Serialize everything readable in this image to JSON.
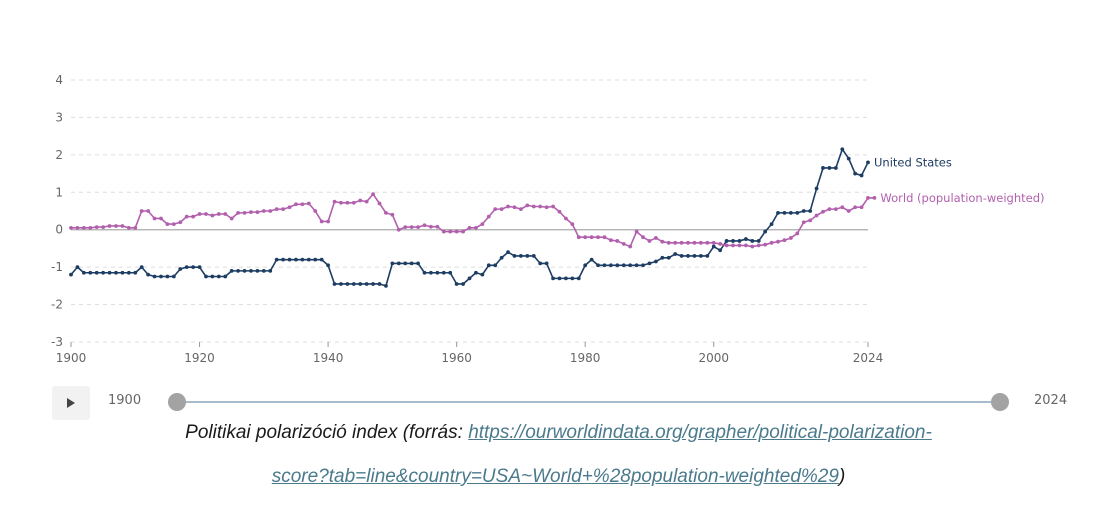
{
  "chart_data": {
    "type": "line",
    "title": "",
    "xlabel": "",
    "ylabel": "",
    "xlim": [
      1900,
      2024
    ],
    "ylim": [
      -3,
      4
    ],
    "grid": true,
    "legend_placement": "right (inline labels at line ends)",
    "y_ticks": [
      "4",
      "3",
      "2",
      "1",
      "0",
      "-1",
      "-2",
      "-3"
    ],
    "y_tick_values": [
      4,
      3,
      2,
      1,
      0,
      -1,
      -2,
      -3
    ],
    "x_ticks": [
      "1900",
      "1920",
      "1940",
      "1960",
      "1980",
      "2000",
      "2024"
    ],
    "x_tick_values": [
      1900,
      1920,
      1940,
      1960,
      1980,
      2000,
      2024
    ],
    "series": [
      {
        "name": "United States",
        "color": "#1d3d63",
        "x_start": 1900,
        "values": [
          -1.2,
          -1.0,
          -1.15,
          -1.15,
          -1.15,
          -1.15,
          -1.15,
          -1.15,
          -1.15,
          -1.15,
          -1.15,
          -1.0,
          -1.2,
          -1.25,
          -1.25,
          -1.25,
          -1.25,
          -1.05,
          -1.0,
          -1.0,
          -1.0,
          -1.25,
          -1.25,
          -1.25,
          -1.25,
          -1.1,
          -1.1,
          -1.1,
          -1.1,
          -1.1,
          -1.1,
          -1.1,
          -0.8,
          -0.8,
          -0.8,
          -0.8,
          -0.8,
          -0.8,
          -0.8,
          -0.8,
          -0.95,
          -1.45,
          -1.45,
          -1.45,
          -1.45,
          -1.45,
          -1.45,
          -1.45,
          -1.45,
          -1.5,
          -0.9,
          -0.9,
          -0.9,
          -0.9,
          -0.9,
          -1.15,
          -1.15,
          -1.15,
          -1.15,
          -1.15,
          -1.45,
          -1.45,
          -1.3,
          -1.15,
          -1.2,
          -0.95,
          -0.95,
          -0.75,
          -0.6,
          -0.7,
          -0.7,
          -0.7,
          -0.7,
          -0.9,
          -0.9,
          -1.3,
          -1.3,
          -1.3,
          -1.3,
          -1.3,
          -0.95,
          -0.8,
          -0.95,
          -0.95,
          -0.95,
          -0.95,
          -0.95,
          -0.95,
          -0.95,
          -0.95,
          -0.9,
          -0.85,
          -0.75,
          -0.75,
          -0.65,
          -0.7,
          -0.7,
          -0.7,
          -0.7,
          -0.7,
          -0.45,
          -0.55,
          -0.3,
          -0.3,
          -0.3,
          -0.25,
          -0.3,
          -0.3,
          -0.05,
          0.15,
          0.45,
          0.45,
          0.45,
          0.45,
          0.5,
          0.5,
          1.1,
          1.65,
          1.65,
          1.65,
          2.15,
          1.9,
          1.5,
          1.45,
          1.8
        ]
      },
      {
        "name": "World (population-weighted)",
        "color": "#b260ae",
        "x_start": 1900,
        "values": [
          0.05,
          0.05,
          0.05,
          0.05,
          0.07,
          0.07,
          0.1,
          0.1,
          0.1,
          0.05,
          0.05,
          0.5,
          0.5,
          0.3,
          0.3,
          0.15,
          0.15,
          0.2,
          0.35,
          0.35,
          0.42,
          0.42,
          0.38,
          0.42,
          0.42,
          0.3,
          0.45,
          0.45,
          0.47,
          0.47,
          0.5,
          0.5,
          0.55,
          0.55,
          0.6,
          0.68,
          0.68,
          0.7,
          0.5,
          0.22,
          0.22,
          0.75,
          0.72,
          0.72,
          0.72,
          0.78,
          0.75,
          0.95,
          0.7,
          0.45,
          0.4,
          0.0,
          0.07,
          0.07,
          0.07,
          0.12,
          0.08,
          0.08,
          -0.05,
          -0.05,
          -0.05,
          -0.05,
          0.05,
          0.05,
          0.15,
          0.35,
          0.55,
          0.55,
          0.62,
          0.6,
          0.55,
          0.65,
          0.62,
          0.62,
          0.6,
          0.62,
          0.48,
          0.3,
          0.15,
          -0.2,
          -0.2,
          -0.2,
          -0.2,
          -0.2,
          -0.28,
          -0.3,
          -0.38,
          -0.45,
          -0.05,
          -0.2,
          -0.3,
          -0.22,
          -0.32,
          -0.35,
          -0.35,
          -0.35,
          -0.35,
          -0.35,
          -0.35,
          -0.35,
          -0.35,
          -0.38,
          -0.42,
          -0.42,
          -0.42,
          -0.42,
          -0.45,
          -0.42,
          -0.4,
          -0.35,
          -0.32,
          -0.28,
          -0.22,
          -0.1,
          0.2,
          0.25,
          0.38,
          0.48,
          0.55,
          0.55,
          0.6,
          0.5,
          0.6,
          0.6,
          0.85,
          0.85
        ]
      }
    ]
  },
  "controls": {
    "play_icon": "play-icon",
    "start_year": "1900",
    "end_year": "2024",
    "range_start": 1900,
    "range_end": 2024
  },
  "caption": {
    "prefix": "Politikai polarizóció index (forrás: ",
    "link_line1": "https://ourworldindata.org/grapher/political-polarization-",
    "link_line2": "score?tab=line&country=USA~World+%28population-weighted%29",
    "suffix": ")"
  }
}
